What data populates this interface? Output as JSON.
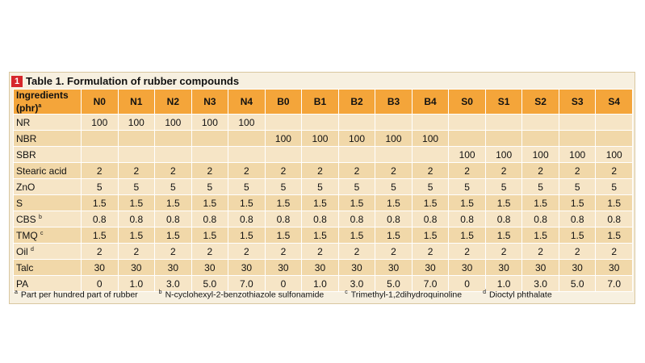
{
  "title": {
    "number": "1",
    "text": "Table 1. Formulation of rubber compounds"
  },
  "table": {
    "header_label": "Ingredients (phr)",
    "header_sup": "a",
    "columns": [
      "N0",
      "N1",
      "N2",
      "N3",
      "N4",
      "B0",
      "B1",
      "B2",
      "B3",
      "B4",
      "S0",
      "S1",
      "S2",
      "S3",
      "S4"
    ],
    "rows": [
      {
        "label": "NR",
        "sup": "",
        "values": [
          "100",
          "100",
          "100",
          "100",
          "100",
          "",
          "",
          "",
          "",
          "",
          "",
          "",
          "",
          "",
          ""
        ]
      },
      {
        "label": "NBR",
        "sup": "",
        "values": [
          "",
          "",
          "",
          "",
          "",
          "100",
          "100",
          "100",
          "100",
          "100",
          "",
          "",
          "",
          "",
          ""
        ]
      },
      {
        "label": "SBR",
        "sup": "",
        "values": [
          "",
          "",
          "",
          "",
          "",
          "",
          "",
          "",
          "",
          "",
          "100",
          "100",
          "100",
          "100",
          "100"
        ]
      },
      {
        "label": "Stearic acid",
        "sup": "",
        "values": [
          "2",
          "2",
          "2",
          "2",
          "2",
          "2",
          "2",
          "2",
          "2",
          "2",
          "2",
          "2",
          "2",
          "2",
          "2"
        ]
      },
      {
        "label": "ZnO",
        "sup": "",
        "values": [
          "5",
          "5",
          "5",
          "5",
          "5",
          "5",
          "5",
          "5",
          "5",
          "5",
          "5",
          "5",
          "5",
          "5",
          "5"
        ]
      },
      {
        "label": "S",
        "sup": "",
        "values": [
          "1.5",
          "1.5",
          "1.5",
          "1.5",
          "1.5",
          "1.5",
          "1.5",
          "1.5",
          "1.5",
          "1.5",
          "1.5",
          "1.5",
          "1.5",
          "1.5",
          "1.5"
        ]
      },
      {
        "label": "CBS",
        "sup": "b",
        "values": [
          "0.8",
          "0.8",
          "0.8",
          "0.8",
          "0.8",
          "0.8",
          "0.8",
          "0.8",
          "0.8",
          "0.8",
          "0.8",
          "0.8",
          "0.8",
          "0.8",
          "0.8"
        ]
      },
      {
        "label": "TMQ",
        "sup": "c",
        "values": [
          "1.5",
          "1.5",
          "1.5",
          "1.5",
          "1.5",
          "1.5",
          "1.5",
          "1.5",
          "1.5",
          "1.5",
          "1.5",
          "1.5",
          "1.5",
          "1.5",
          "1.5"
        ]
      },
      {
        "label": "Oil",
        "sup": "d",
        "values": [
          "2",
          "2",
          "2",
          "2",
          "2",
          "2",
          "2",
          "2",
          "2",
          "2",
          "2",
          "2",
          "2",
          "2",
          "2"
        ]
      },
      {
        "label": "Talc",
        "sup": "",
        "values": [
          "30",
          "30",
          "30",
          "30",
          "30",
          "30",
          "30",
          "30",
          "30",
          "30",
          "30",
          "30",
          "30",
          "30",
          "30"
        ]
      },
      {
        "label": "PA",
        "sup": "",
        "values": [
          "0",
          "1.0",
          "3.0",
          "5.0",
          "7.0",
          "0",
          "1.0",
          "3.0",
          "5.0",
          "7.0",
          "0",
          "1.0",
          "3.0",
          "5.0",
          "7.0"
        ]
      }
    ]
  },
  "footnotes": [
    {
      "mark": "a",
      "text": "Part per hundred part of rubber"
    },
    {
      "mark": "b",
      "text": "N-cyclohexyl-2-benzothiazole sulfonamide"
    },
    {
      "mark": "c",
      "text": "Trimethyl-1,2dihydroquinoline"
    },
    {
      "mark": "d",
      "text": "Dioctyl phthalate"
    }
  ],
  "colors": {
    "header_bg": "#f4a53a",
    "row_light": "#f6e5c6",
    "row_dark": "#f1d8a9",
    "badge": "#d6262b"
  }
}
